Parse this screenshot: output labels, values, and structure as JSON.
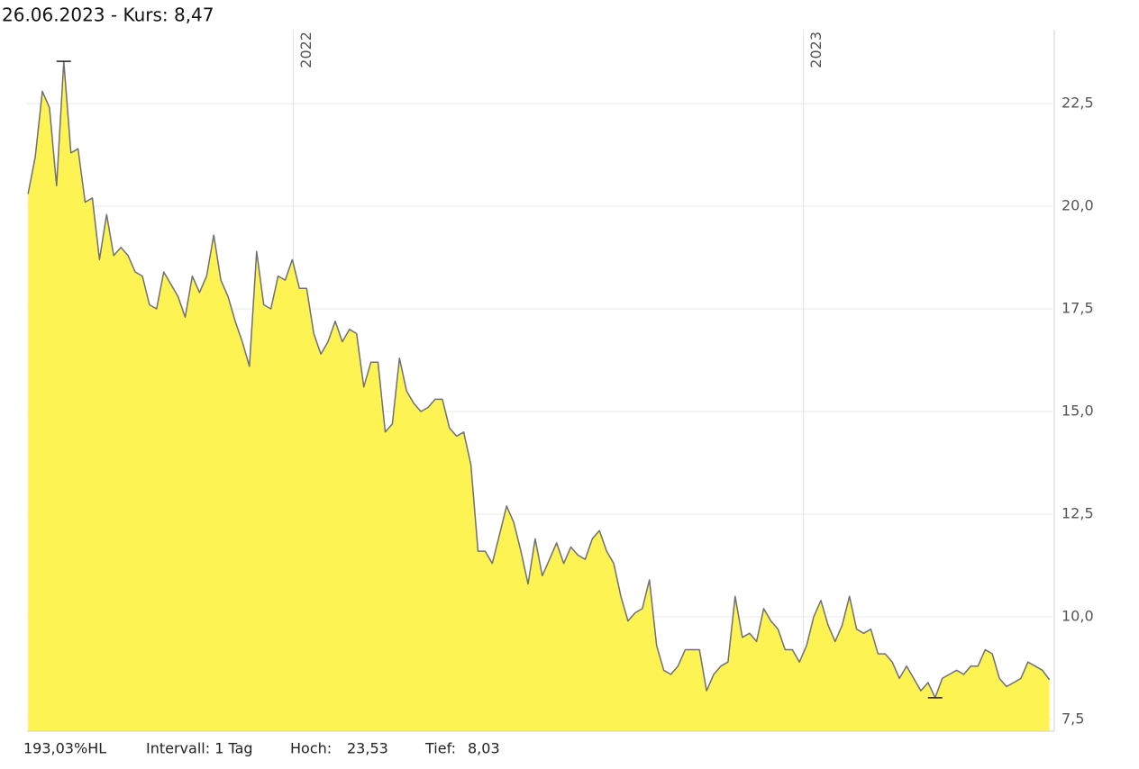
{
  "chart_data": {
    "type": "area",
    "title": "26.06.2023  -  Kurs: 8,47",
    "stats": [
      "193,03%HL",
      "Intervall: 1 Tag",
      "Hoch:",
      "23,53",
      "Tief:",
      "8,03"
    ],
    "fill_color": "#fdf352",
    "line_color": "#707070",
    "grid": true,
    "xlim": [
      2021.478,
      2023.488
    ],
    "xticks": [
      2022,
      2023
    ],
    "ylim": [
      7.215,
      24.3
    ],
    "yticks": [
      {
        "value": 7.5,
        "label": "7,5"
      },
      {
        "value": 10,
        "label": "10,0"
      },
      {
        "value": 12.5,
        "label": "12,5"
      },
      {
        "value": 15,
        "label": "15,0"
      },
      {
        "value": 17.5,
        "label": "17,5"
      },
      {
        "value": 20,
        "label": "20,0"
      },
      {
        "value": 22.5,
        "label": "22,5"
      }
    ],
    "x": [
      2021.48,
      2021.494,
      2021.508,
      2021.522,
      2021.536,
      2021.55,
      2021.564,
      2021.578,
      2021.592,
      2021.606,
      2021.62,
      2021.634,
      2021.648,
      2021.662,
      2021.676,
      2021.69,
      2021.704,
      2021.718,
      2021.732,
      2021.746,
      2021.76,
      2021.774,
      2021.788,
      2021.802,
      2021.816,
      2021.83,
      2021.844,
      2021.858,
      2021.872,
      2021.886,
      2021.9,
      2021.914,
      2021.928,
      2021.942,
      2021.956,
      2021.97,
      2021.984,
      2021.998,
      2022.012,
      2022.026,
      2022.04,
      2022.054,
      2022.068,
      2022.082,
      2022.096,
      2022.11,
      2022.124,
      2022.138,
      2022.152,
      2022.166,
      2022.18,
      2022.194,
      2022.208,
      2022.222,
      2022.236,
      2022.25,
      2022.264,
      2022.278,
      2022.292,
      2022.306,
      2022.32,
      2022.334,
      2022.348,
      2022.362,
      2022.376,
      2022.39,
      2022.404,
      2022.418,
      2022.432,
      2022.446,
      2022.46,
      2022.474,
      2022.488,
      2022.502,
      2022.516,
      2022.53,
      2022.544,
      2022.558,
      2022.572,
      2022.586,
      2022.6,
      2022.614,
      2022.628,
      2022.642,
      2022.656,
      2022.67,
      2022.684,
      2022.698,
      2022.712,
      2022.726,
      2022.74,
      2022.754,
      2022.768,
      2022.782,
      2022.796,
      2022.81,
      2022.824,
      2022.838,
      2022.852,
      2022.866,
      2022.88,
      2022.894,
      2022.908,
      2022.922,
      2022.936,
      2022.95,
      2022.964,
      2022.978,
      2022.992,
      2023.006,
      2023.02,
      2023.034,
      2023.048,
      2023.062,
      2023.076,
      2023.09,
      2023.104,
      2023.118,
      2023.132,
      2023.146,
      2023.16,
      2023.174,
      2023.188,
      2023.202,
      2023.216,
      2023.23,
      2023.244,
      2023.258,
      2023.272,
      2023.286,
      2023.3,
      2023.314,
      2023.328,
      2023.342,
      2023.356,
      2023.37,
      2023.384,
      2023.398,
      2023.412,
      2023.426,
      2023.44,
      2023.454,
      2023.468,
      2023.482
    ],
    "values": [
      20.3,
      21.2,
      22.8,
      22.4,
      20.5,
      23.53,
      21.3,
      21.4,
      20.1,
      20.2,
      18.7,
      19.8,
      18.8,
      19.0,
      18.8,
      18.4,
      18.3,
      17.6,
      17.5,
      18.4,
      18.1,
      17.8,
      17.3,
      18.3,
      17.9,
      18.3,
      19.3,
      18.2,
      17.8,
      17.2,
      16.7,
      16.1,
      18.9,
      17.6,
      17.5,
      18.3,
      18.2,
      18.7,
      18.0,
      18.0,
      16.9,
      16.4,
      16.7,
      17.2,
      16.7,
      17.0,
      16.9,
      15.6,
      16.2,
      16.2,
      14.5,
      14.7,
      16.3,
      15.5,
      15.2,
      15.0,
      15.1,
      15.3,
      15.3,
      14.6,
      14.4,
      14.5,
      13.7,
      11.6,
      11.6,
      11.3,
      12.0,
      12.7,
      12.3,
      11.6,
      10.8,
      11.9,
      11.0,
      11.4,
      11.8,
      11.3,
      11.7,
      11.5,
      11.4,
      11.9,
      12.1,
      11.6,
      11.3,
      10.5,
      9.9,
      10.1,
      10.2,
      10.9,
      9.3,
      8.7,
      8.6,
      8.8,
      9.2,
      9.2,
      9.2,
      8.2,
      8.6,
      8.8,
      8.9,
      10.5,
      9.5,
      9.6,
      9.4,
      10.2,
      9.9,
      9.7,
      9.2,
      9.2,
      8.9,
      9.3,
      10.0,
      10.4,
      9.8,
      9.4,
      9.8,
      10.5,
      9.7,
      9.6,
      9.7,
      9.1,
      9.1,
      8.9,
      8.5,
      8.8,
      8.5,
      8.2,
      8.4,
      8.03,
      8.5,
      8.6,
      8.7,
      8.6,
      8.8,
      8.8,
      9.2,
      9.1,
      8.5,
      8.3,
      8.4,
      8.5,
      8.9,
      8.8,
      8.7,
      8.47
    ]
  }
}
